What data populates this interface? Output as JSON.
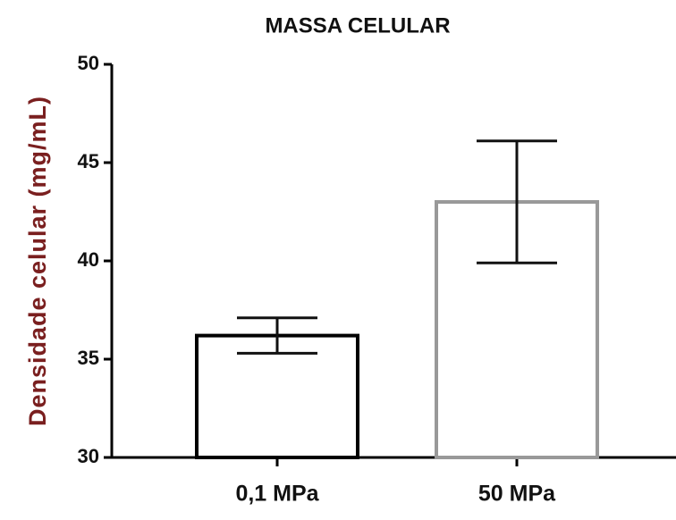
{
  "chart_data": {
    "type": "bar",
    "title": "MASSA CELULAR",
    "y_label": "Densidade celular (mg/mL)",
    "categories": [
      "0,1 MPa",
      "50 MPa"
    ],
    "values": [
      36.2,
      43.0
    ],
    "errors": [
      0.9,
      3.1
    ],
    "colors": [
      "#000000",
      "#999999"
    ],
    "fill": "#ffffff",
    "ylim": [
      30,
      50
    ],
    "yticks": [
      30,
      35,
      40,
      45,
      50
    ],
    "grid": false
  }
}
